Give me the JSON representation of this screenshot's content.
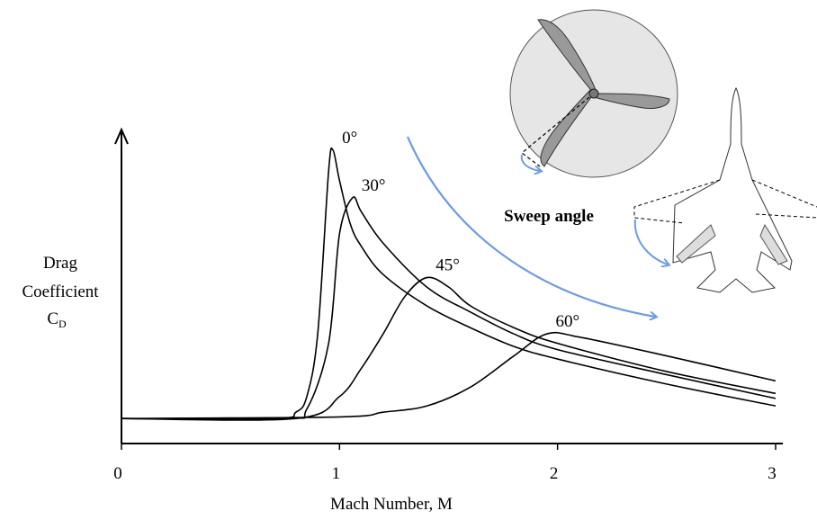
{
  "chart_data": {
    "type": "line",
    "x_label": "Mach Number, M",
    "y_label": [
      "Drag",
      "Coefficient"
    ],
    "y_label_symbol": "C",
    "y_label_subscript": "D",
    "annotation": "Sweep angle",
    "xlim": [
      0,
      3
    ],
    "xticks": [
      0,
      1,
      2,
      3
    ],
    "ylim": [
      0,
      1
    ],
    "color": "#000000",
    "series": [
      {
        "name": "0°",
        "x": [
          0,
          0.7,
          0.8,
          0.85,
          0.9,
          0.95,
          0.97,
          1.0,
          1.05,
          1.1,
          1.2,
          1.4,
          1.6,
          1.8,
          2.0,
          2.5,
          3.0
        ],
        "values": [
          0.08,
          0.08,
          0.1,
          0.15,
          0.35,
          0.87,
          0.937,
          0.84,
          0.7,
          0.63,
          0.54,
          0.44,
          0.37,
          0.31,
          0.27,
          0.19,
          0.12
        ]
      },
      {
        "name": "30°",
        "x": [
          0,
          0.75,
          0.85,
          0.95,
          1.0,
          1.06,
          1.1,
          1.2,
          1.4,
          1.6,
          1.8,
          2.0,
          2.5,
          3.0
        ],
        "values": [
          0.08,
          0.08,
          0.11,
          0.32,
          0.67,
          0.785,
          0.74,
          0.64,
          0.5,
          0.42,
          0.35,
          0.3,
          0.22,
          0.144
        ]
      },
      {
        "name": "45°",
        "x": [
          0,
          0.8,
          1.0,
          1.1,
          1.2,
          1.3,
          1.4,
          1.5,
          1.6,
          1.8,
          2.0,
          2.5,
          3.0
        ],
        "values": [
          0.08,
          0.08,
          0.15,
          0.24,
          0.35,
          0.47,
          0.53,
          0.5,
          0.44,
          0.37,
          0.32,
          0.23,
          0.16
        ]
      },
      {
        "name": "60°",
        "x": [
          0,
          1.0,
          1.2,
          1.4,
          1.6,
          1.8,
          1.95,
          2.1,
          2.5,
          3.0
        ],
        "values": [
          0.08,
          0.085,
          0.1,
          0.12,
          0.18,
          0.28,
          0.35,
          0.34,
          0.28,
          0.2
        ]
      }
    ]
  }
}
